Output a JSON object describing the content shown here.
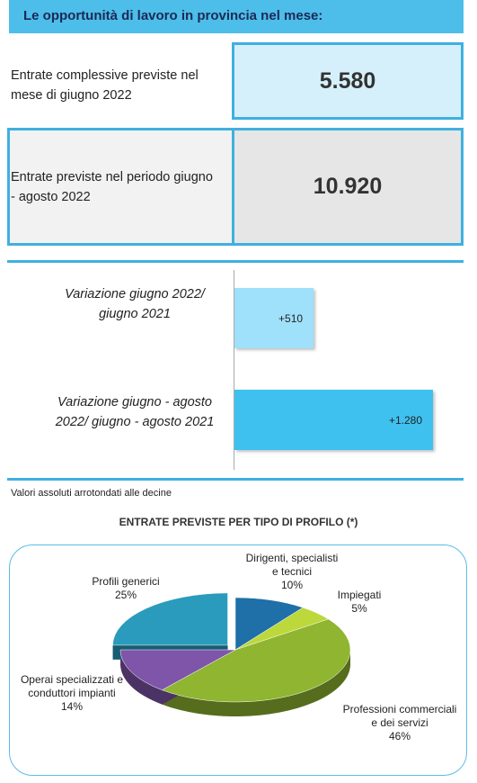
{
  "header": {
    "title": "Le opportunità di lavoro in provincia nel mese:"
  },
  "kpis": [
    {
      "label": "Entrate complessive previste nel mese di giugno 2022",
      "value": "5.580"
    },
    {
      "label": "Entrate previste nel periodo giugno - agosto 2022",
      "value": "10.920"
    }
  ],
  "chart_data": [
    {
      "type": "bar",
      "orientation": "horizontal",
      "categories": [
        "Variazione giugno 2022/ giugno 2021",
        "Variazione giugno - agosto 2022/ giugno - agosto 2021"
      ],
      "values": [
        510,
        1280
      ],
      "value_labels": [
        "+510",
        "+1.280"
      ],
      "colors": [
        "#9fe1fb",
        "#3fc1f0"
      ]
    },
    {
      "type": "pie",
      "title": "ENTRATE PREVISTE PER TIPO DI PROFILO (*)",
      "categories": [
        "Dirigenti, specialisti e tecnici",
        "Impiegati",
        "Professioni commerciali e dei servizi",
        "Operai specializzati e conduttori impianti",
        "Profili generici"
      ],
      "values": [
        10,
        5,
        46,
        14,
        25
      ],
      "value_labels": [
        "10%",
        "5%",
        "46%",
        "14%",
        "25%"
      ],
      "colors": [
        "#1f6fa8",
        "#bcd83a",
        "#8fb531",
        "#7e55a8",
        "#2a9bbd"
      ]
    }
  ],
  "note": "Valori assoluti arrotondati alle decine"
}
